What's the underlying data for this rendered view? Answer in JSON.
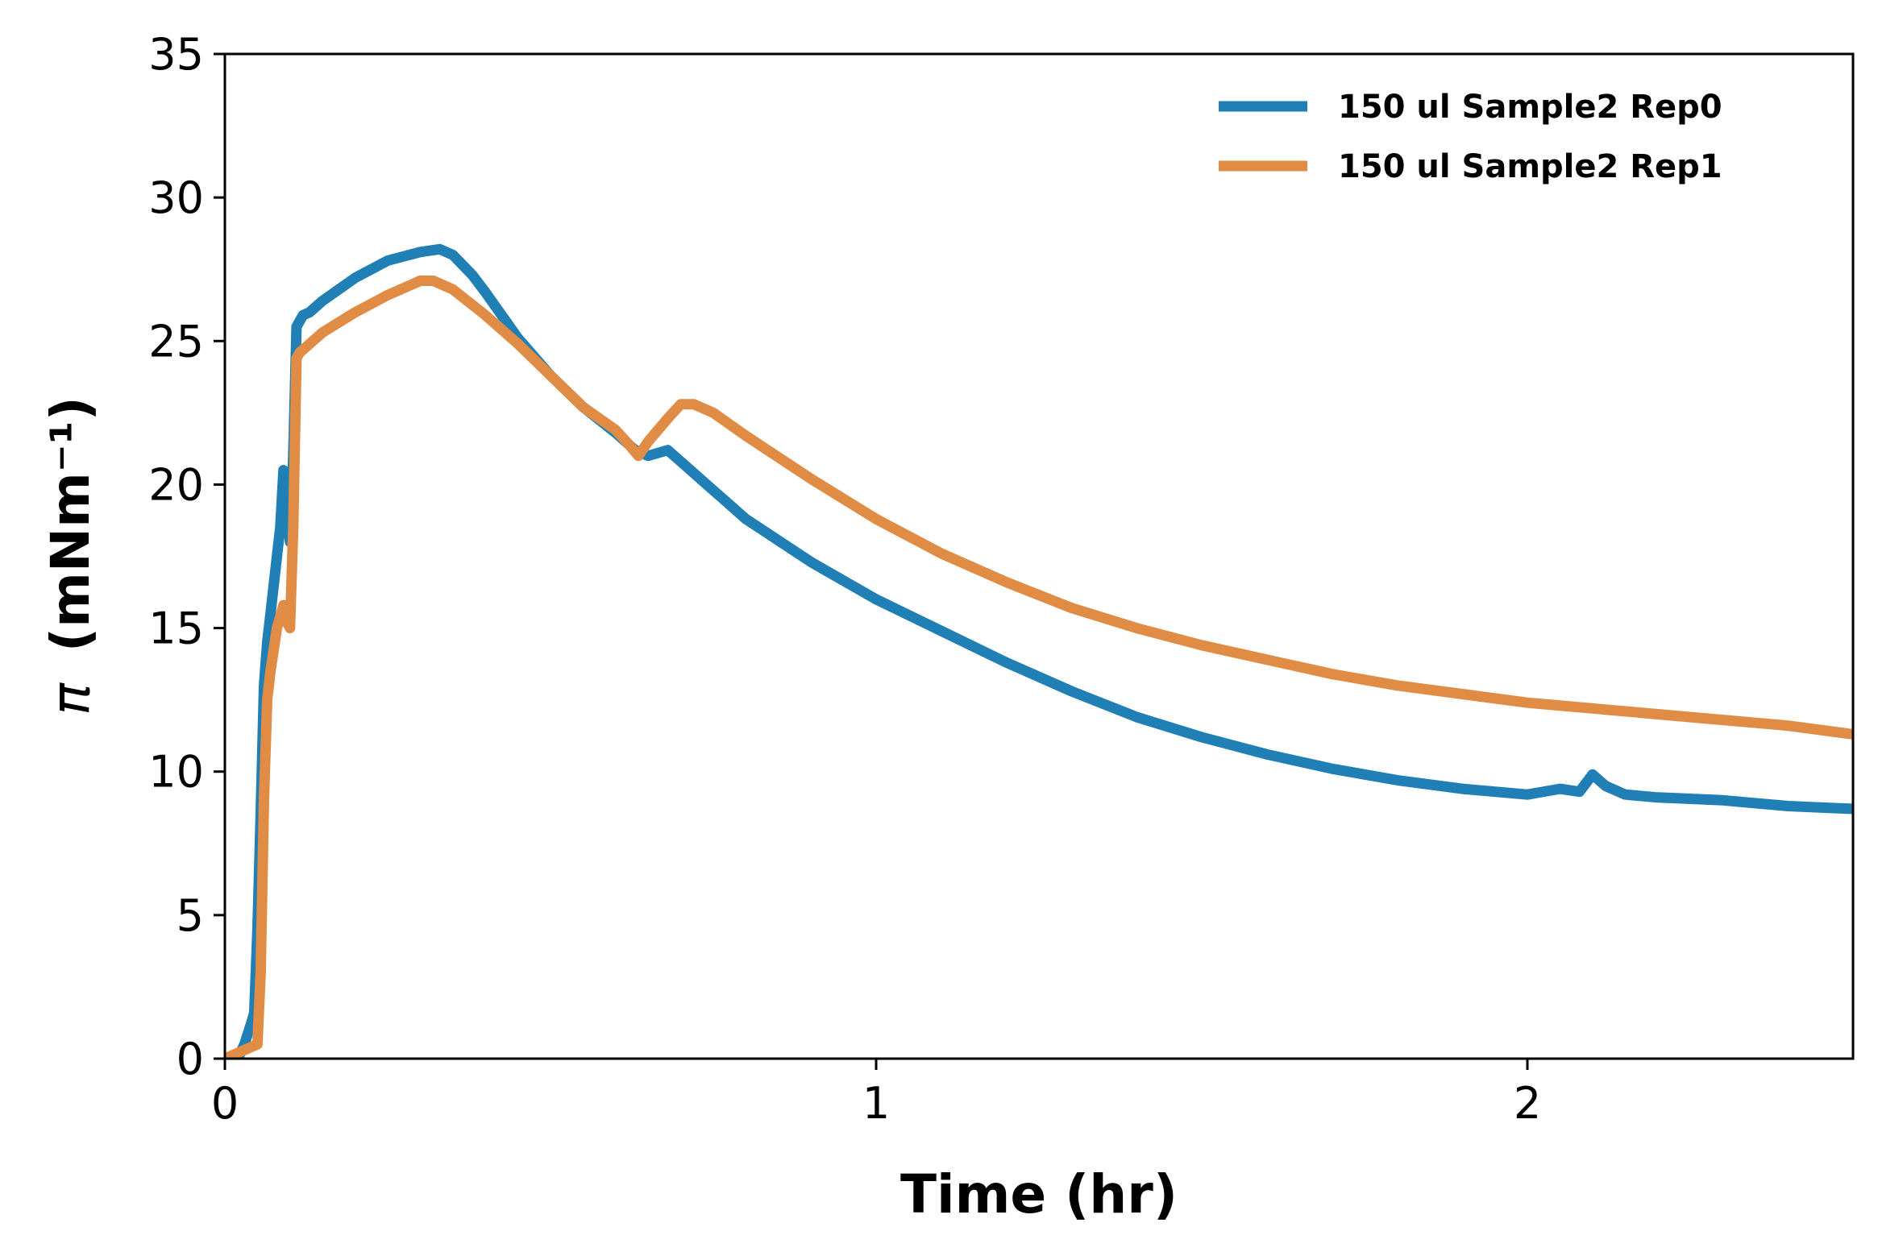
{
  "chart_data": {
    "type": "line",
    "xlabel": "Time (hr)",
    "ylabel_symbol": "π",
    "ylabel_units": "(mNm⁻¹)",
    "xlim": [
      0,
      2.5
    ],
    "ylim": [
      0,
      35
    ],
    "xticks": [
      0,
      1,
      2
    ],
    "xtick_labels": [
      "0",
      "1",
      "2"
    ],
    "yticks": [
      0,
      5,
      10,
      15,
      20,
      25,
      30,
      35
    ],
    "ytick_labels": [
      "0",
      "5",
      "10",
      "15",
      "20",
      "25",
      "30",
      "35"
    ],
    "grid": false,
    "legend_position": "top-right",
    "series": [
      {
        "name": "150 ul Sample2 Rep0",
        "color": "#2080b5",
        "x": [
          0.0,
          0.02,
          0.03,
          0.04,
          0.045,
          0.05,
          0.055,
          0.06,
          0.065,
          0.07,
          0.075,
          0.08,
          0.085,
          0.09,
          0.1,
          0.105,
          0.11,
          0.115,
          0.12,
          0.13,
          0.15,
          0.2,
          0.25,
          0.3,
          0.33,
          0.35,
          0.38,
          0.4,
          0.45,
          0.5,
          0.55,
          0.6,
          0.63,
          0.65,
          0.68,
          0.7,
          0.75,
          0.8,
          0.9,
          1.0,
          1.1,
          1.2,
          1.3,
          1.4,
          1.5,
          1.6,
          1.7,
          1.8,
          1.9,
          2.0,
          2.05,
          2.08,
          2.1,
          2.12,
          2.15,
          2.2,
          2.3,
          2.4,
          2.5
        ],
        "y": [
          0,
          0,
          0.5,
          1.2,
          1.6,
          4.5,
          8.5,
          13.0,
          14.5,
          15.5,
          16.5,
          17.5,
          18.5,
          20.5,
          18.0,
          21.0,
          25.5,
          25.7,
          25.9,
          26.0,
          26.4,
          27.2,
          27.8,
          28.1,
          28.2,
          28.0,
          27.3,
          26.7,
          25.1,
          23.8,
          22.7,
          21.8,
          21.2,
          21.0,
          21.2,
          20.8,
          19.8,
          18.8,
          17.3,
          16.0,
          14.9,
          13.8,
          12.8,
          11.9,
          11.2,
          10.6,
          10.1,
          9.7,
          9.4,
          9.2,
          9.4,
          9.3,
          9.9,
          9.5,
          9.2,
          9.1,
          9.0,
          8.8,
          8.7
        ]
      },
      {
        "name": "150 ul Sample2 Rep1",
        "color": "#e08c45",
        "x": [
          0.0,
          0.05,
          0.055,
          0.06,
          0.065,
          0.07,
          0.08,
          0.09,
          0.095,
          0.1,
          0.105,
          0.11,
          0.115,
          0.12,
          0.15,
          0.2,
          0.25,
          0.3,
          0.32,
          0.35,
          0.4,
          0.45,
          0.5,
          0.55,
          0.6,
          0.62,
          0.635,
          0.65,
          0.68,
          0.7,
          0.72,
          0.75,
          0.8,
          0.9,
          1.0,
          1.1,
          1.2,
          1.3,
          1.4,
          1.5,
          1.6,
          1.7,
          1.8,
          1.9,
          2.0,
          2.1,
          2.2,
          2.3,
          2.4,
          2.5
        ],
        "y": [
          0,
          0.5,
          3.0,
          9.0,
          12.5,
          13.5,
          15.0,
          15.8,
          15.2,
          15.0,
          18.5,
          24.4,
          24.6,
          24.7,
          25.3,
          26.0,
          26.6,
          27.1,
          27.1,
          26.8,
          25.9,
          24.9,
          23.8,
          22.7,
          21.9,
          21.4,
          21.0,
          21.5,
          22.3,
          22.8,
          22.8,
          22.5,
          21.7,
          20.2,
          18.8,
          17.6,
          16.6,
          15.7,
          15.0,
          14.4,
          13.9,
          13.4,
          13.0,
          12.7,
          12.4,
          12.2,
          12.0,
          11.8,
          11.6,
          11.3
        ]
      }
    ]
  }
}
